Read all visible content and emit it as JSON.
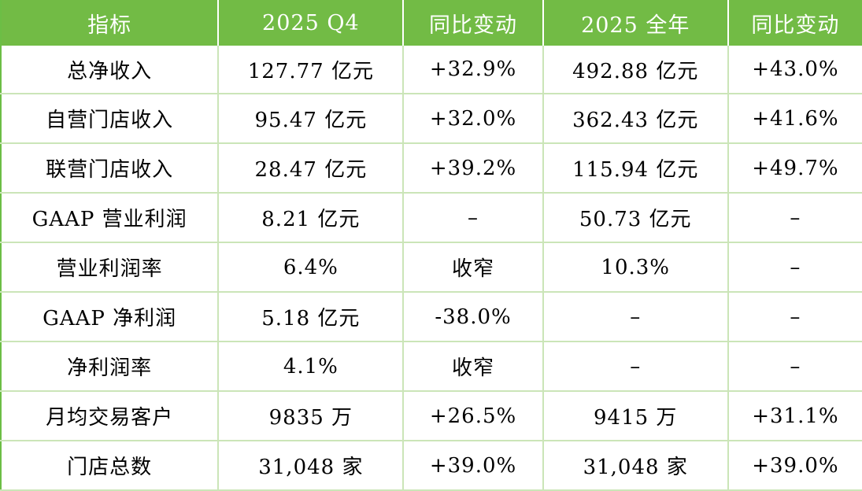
{
  "colors": {
    "header_bg": "#72bb45",
    "header_text": "#ffffff",
    "grid_line": "#cbe5b8",
    "outer_left_border": "#6cbe45",
    "body_bg": "#ffffff",
    "body_text": "#000000"
  },
  "chart_data": {
    "type": "table",
    "title": "",
    "headers": [
      "指标",
      "2025 Q4",
      "同比变动",
      "2025 全年",
      "同比变动"
    ],
    "rows": [
      [
        "总净收入",
        "127.77 亿元",
        "+32.9%",
        "492.88 亿元",
        "+43.0%"
      ],
      [
        "自营门店收入",
        "95.47 亿元",
        "+32.0%",
        "362.43 亿元",
        "+41.6%"
      ],
      [
        "联营门店收入",
        "28.47 亿元",
        "+39.2%",
        "115.94 亿元",
        "+49.7%"
      ],
      [
        "GAAP 营业利润",
        "8.21 亿元",
        "–",
        "50.73 亿元",
        "–"
      ],
      [
        "营业利润率",
        "6.4%",
        "收窄",
        "10.3%",
        "–"
      ],
      [
        "GAAP 净利润",
        "5.18 亿元",
        "-38.0%",
        "–",
        "–"
      ],
      [
        "净利润率",
        "4.1%",
        "收窄",
        "–",
        "–"
      ],
      [
        "月均交易客户",
        "9835 万",
        "+26.5%",
        "9415 万",
        "+31.1%"
      ],
      [
        "门店总数",
        "31,048 家",
        "+39.0%",
        "31,048 家",
        "+39.0%"
      ]
    ]
  }
}
